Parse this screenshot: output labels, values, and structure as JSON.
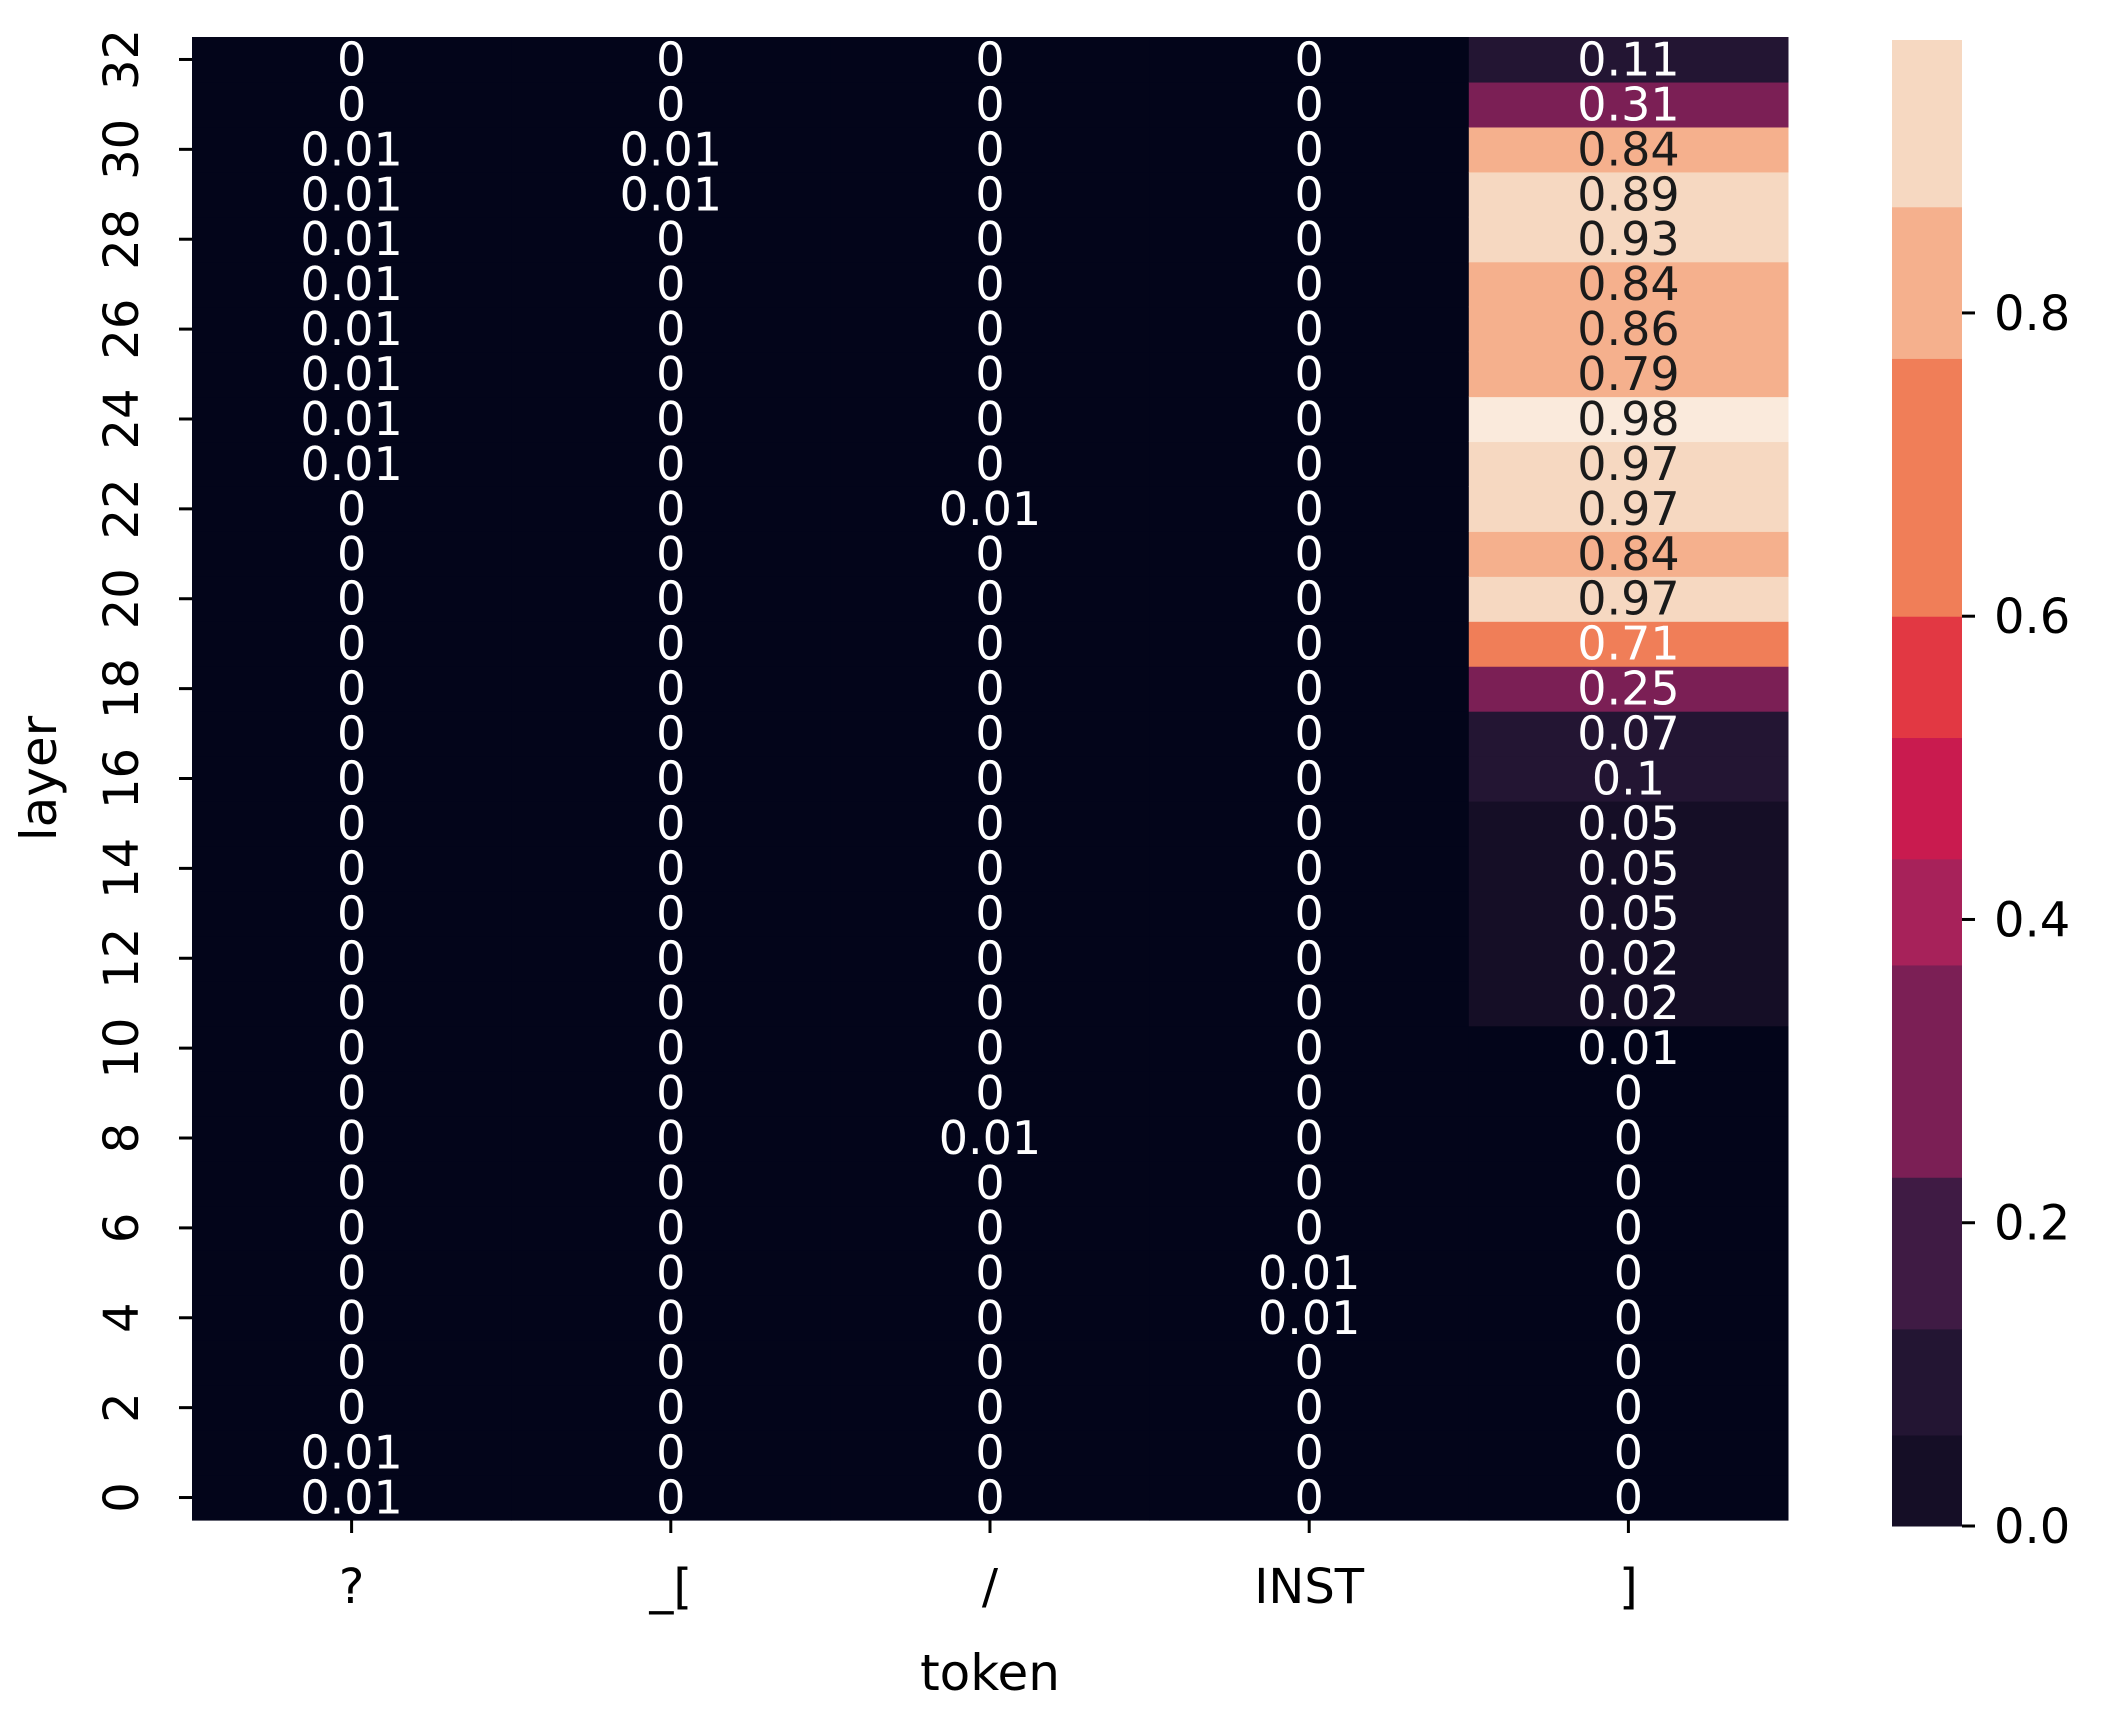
{
  "chart_data": {
    "type": "heatmap",
    "xlabel": "token",
    "ylabel": "layer",
    "columns": [
      "?",
      "_[",
      "/",
      "INST",
      "]"
    ],
    "layers": [
      0,
      1,
      2,
      3,
      4,
      5,
      6,
      7,
      8,
      9,
      10,
      11,
      12,
      13,
      14,
      15,
      16,
      17,
      18,
      19,
      20,
      21,
      22,
      23,
      24,
      25,
      26,
      27,
      28,
      29,
      30,
      31,
      32
    ],
    "y_ticks": [
      0,
      2,
      4,
      6,
      8,
      10,
      12,
      14,
      16,
      18,
      20,
      22,
      24,
      26,
      28,
      30,
      32
    ],
    "values": {
      "?": [
        0.01,
        0.01,
        0,
        0,
        0,
        0,
        0,
        0,
        0,
        0,
        0,
        0,
        0,
        0,
        0,
        0,
        0,
        0,
        0,
        0,
        0,
        0,
        0,
        0.01,
        0.01,
        0.01,
        0.01,
        0.01,
        0.01,
        0.01,
        0.01,
        0,
        0
      ],
      "_[": [
        0,
        0,
        0,
        0,
        0,
        0,
        0,
        0,
        0,
        0,
        0,
        0,
        0,
        0,
        0,
        0,
        0,
        0,
        0,
        0,
        0,
        0,
        0,
        0,
        0,
        0,
        0,
        0,
        0,
        0.01,
        0.01,
        0,
        0
      ],
      "/": [
        0,
        0,
        0,
        0,
        0,
        0,
        0,
        0,
        0.01,
        0,
        0,
        0,
        0,
        0,
        0,
        0,
        0,
        0,
        0,
        0,
        0,
        0,
        0.01,
        0,
        0,
        0,
        0,
        0,
        0,
        0,
        0,
        0,
        0
      ],
      "INST": [
        0,
        0,
        0,
        0,
        0.01,
        0.01,
        0,
        0,
        0,
        0,
        0,
        0,
        0,
        0,
        0,
        0,
        0,
        0,
        0,
        0,
        0,
        0,
        0,
        0,
        0,
        0,
        0,
        0,
        0,
        0,
        0,
        0,
        0
      ],
      "]": [
        0,
        0,
        0,
        0,
        0,
        0,
        0,
        0,
        0,
        0,
        0.01,
        0.02,
        0.02,
        0.05,
        0.05,
        0.05,
        0.1,
        0.07,
        0.25,
        0.71,
        0.97,
        0.84,
        0.97,
        0.97,
        0.98,
        0.79,
        0.86,
        0.84,
        0.93,
        0.89,
        0.84,
        0.31,
        0.11
      ]
    },
    "colorbar": {
      "ticks": [
        0.0,
        0.2,
        0.4,
        0.6,
        0.8
      ],
      "tick_labels": [
        "0.0",
        "0.2",
        "0.4",
        "0.6",
        "0.8"
      ],
      "range": [
        0.0,
        0.98
      ],
      "levels": [
        {
          "from": 0.0,
          "to": 0.06,
          "color": "#150e26"
        },
        {
          "from": 0.06,
          "to": 0.13,
          "color": "#231533"
        },
        {
          "from": 0.13,
          "to": 0.23,
          "color": "#3f1b44"
        },
        {
          "from": 0.23,
          "to": 0.37,
          "color": "#7b1f55"
        },
        {
          "from": 0.37,
          "to": 0.44,
          "color": "#a7225a"
        },
        {
          "from": 0.44,
          "to": 0.52,
          "color": "#c91b4f"
        },
        {
          "from": 0.52,
          "to": 0.6,
          "color": "#e23843"
        },
        {
          "from": 0.6,
          "to": 0.77,
          "color": "#f07e58"
        },
        {
          "from": 0.77,
          "to": 0.87,
          "color": "#f5b08d"
        },
        {
          "from": 0.87,
          "to": 0.98,
          "color": "#f6d8c1"
        }
      ],
      "background_color": "#03051a",
      "top_color": "#faeadc"
    }
  }
}
